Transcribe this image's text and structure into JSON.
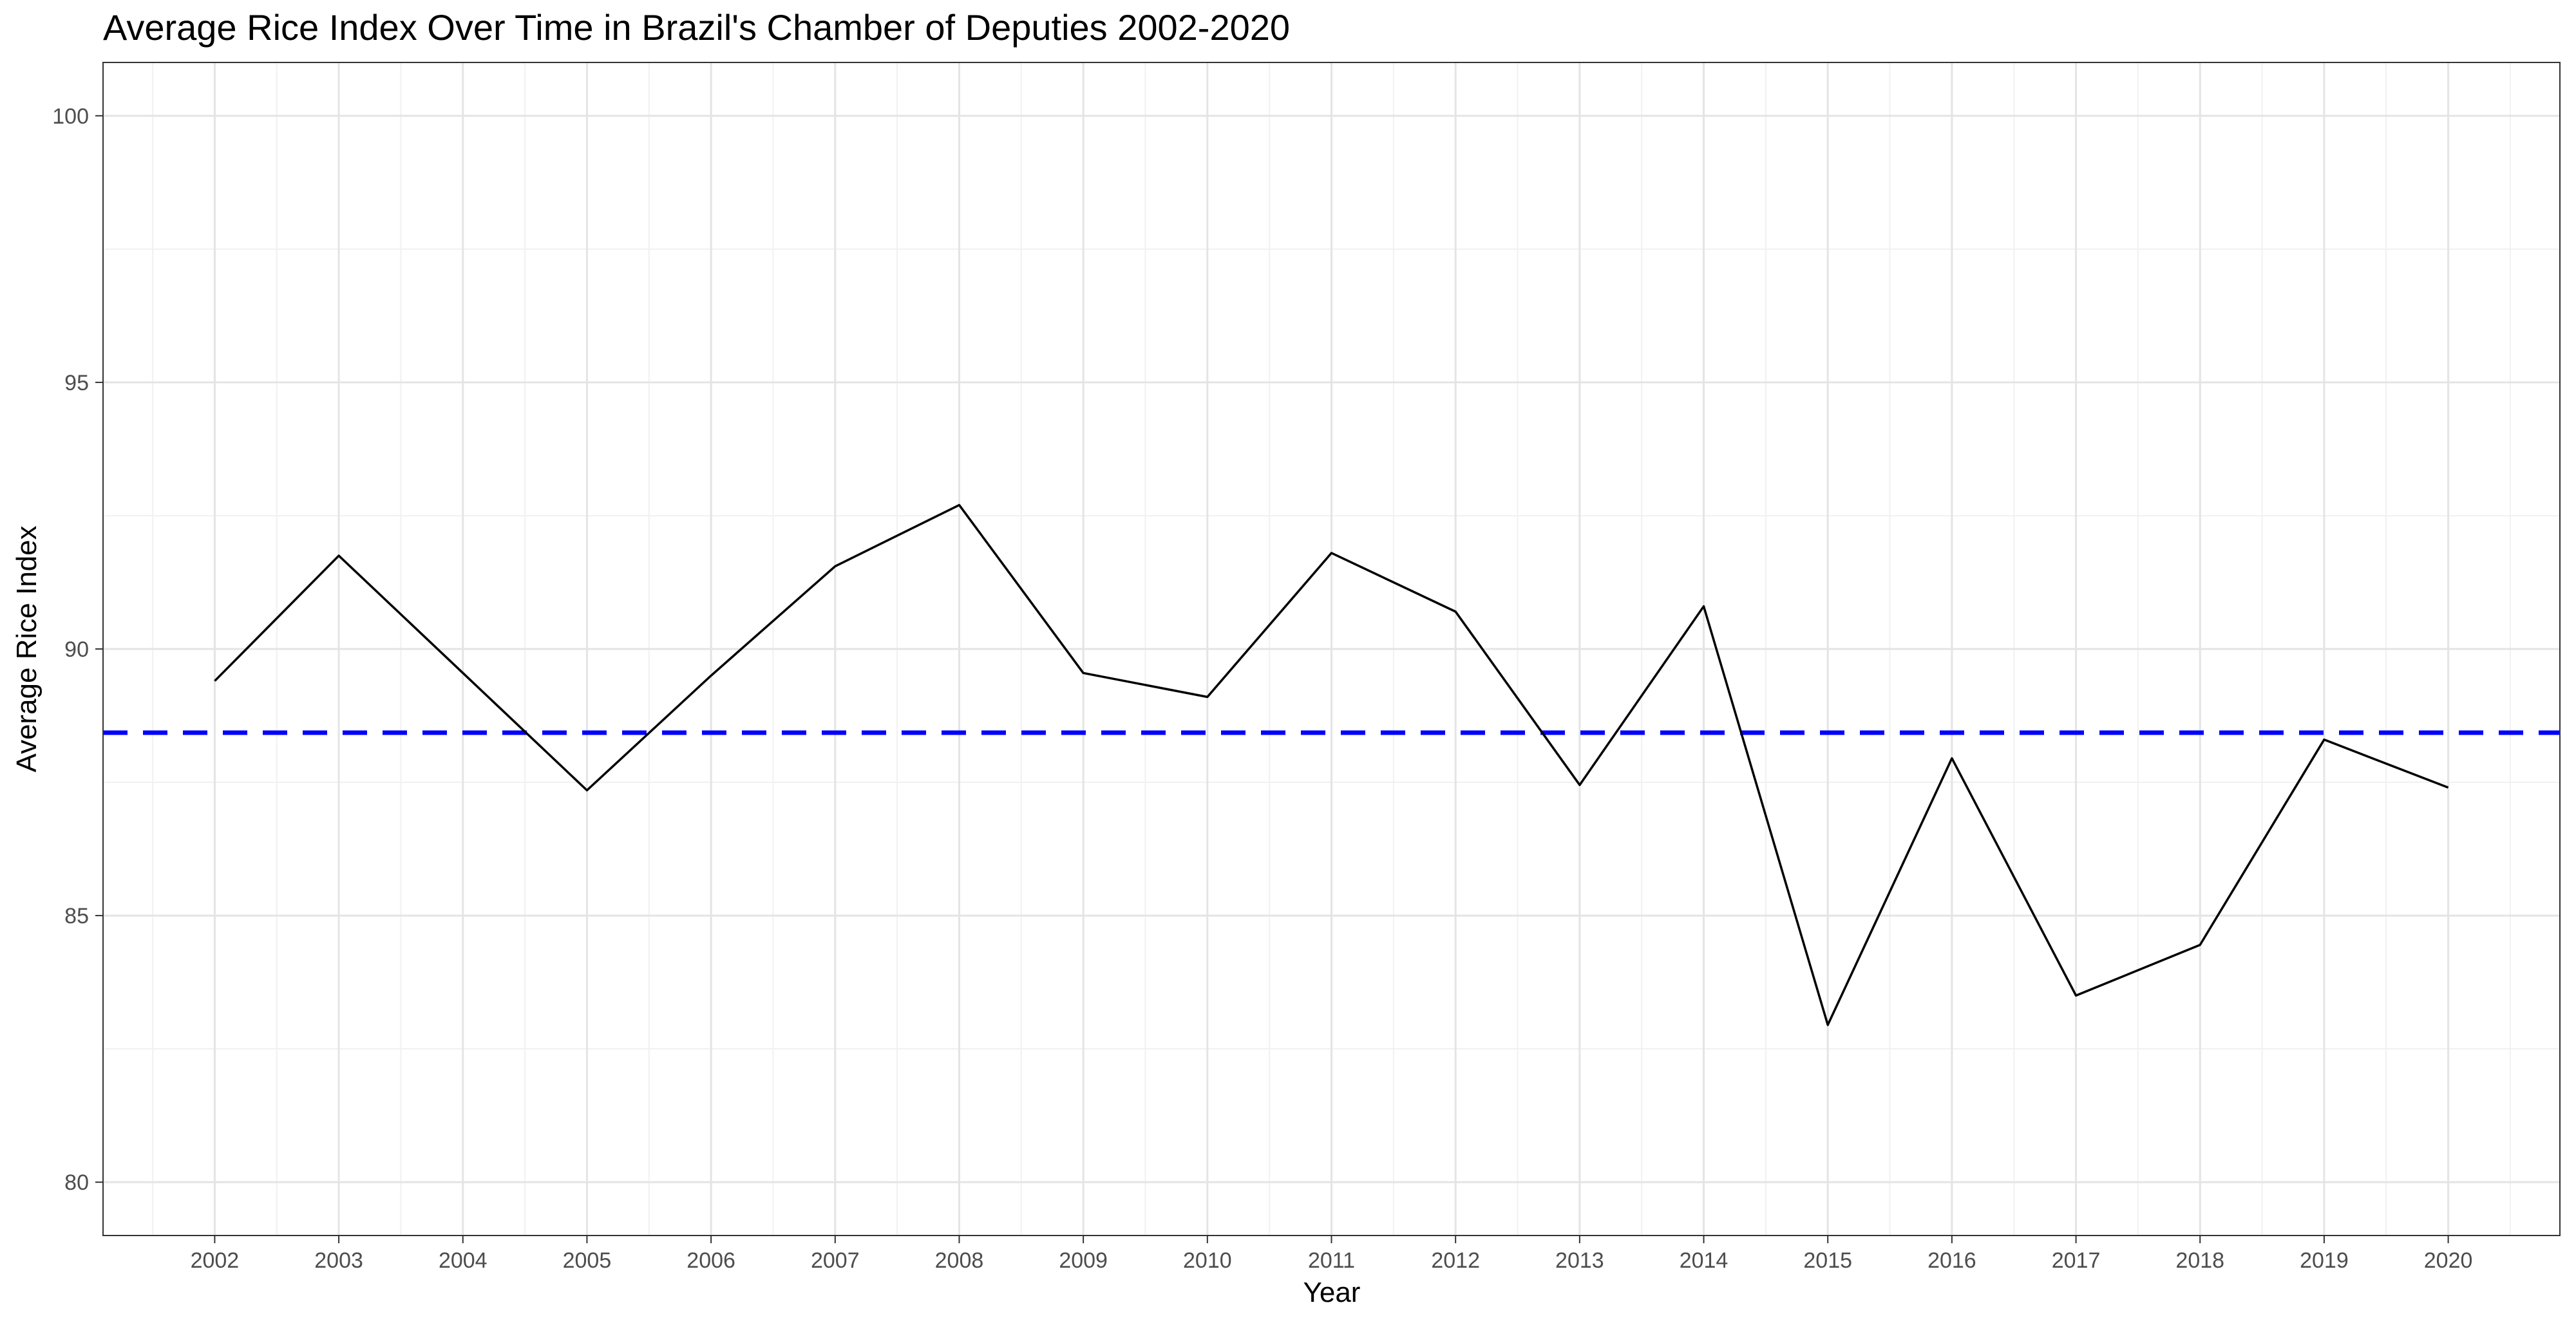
{
  "chart_data": {
    "type": "line",
    "title": "Average Rice Index Over Time in Brazil's Chamber of Deputies 2002-2020",
    "xlabel": "Year",
    "ylabel": "Average Rice Index",
    "x": [
      2002,
      2003,
      2004,
      2005,
      2006,
      2007,
      2008,
      2009,
      2010,
      2011,
      2012,
      2013,
      2014,
      2015,
      2016,
      2017,
      2018,
      2019,
      2020
    ],
    "series": [
      {
        "values": [
          89.4,
          91.75,
          89.55,
          87.35,
          89.5,
          91.55,
          92.7,
          89.55,
          89.1,
          91.8,
          90.7,
          87.45,
          90.8,
          82.95,
          87.95,
          83.5,
          84.45,
          88.3,
          87.4
        ]
      }
    ],
    "reference_line": {
      "y": 88.43,
      "color": "#0000ff",
      "style": "dashed"
    },
    "xlim": [
      2001.1,
      2020.9
    ],
    "ylim": [
      79,
      101
    ],
    "yticks": [
      80,
      85,
      90,
      95,
      100
    ],
    "grid": true,
    "line_color": "#000000"
  }
}
